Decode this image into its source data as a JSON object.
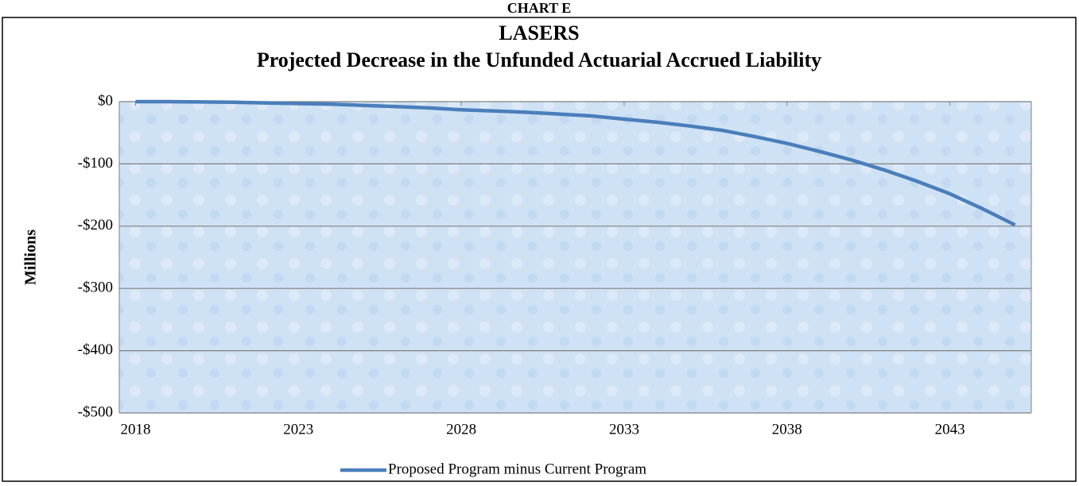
{
  "chart_data": {
    "type": "line",
    "header": "CHART E",
    "title": "LASERS",
    "subtitle": "Projected Decrease in the Unfunded Actuarial Accrued Liability",
    "y_label": "Millions",
    "x": [
      2018,
      2019,
      2020,
      2021,
      2022,
      2023,
      2024,
      2025,
      2026,
      2027,
      2028,
      2029,
      2030,
      2031,
      2032,
      2033,
      2034,
      2035,
      2036,
      2037,
      2038,
      2039,
      2040,
      2041,
      2042,
      2043,
      2044,
      2045
    ],
    "series": [
      {
        "name": "Proposed Program minus Current Program",
        "color": "#4a7ebb",
        "values": [
          0,
          0,
          -0.5,
          -1,
          -2,
          -3,
          -4,
          -6,
          -8,
          -10,
          -13,
          -15,
          -17,
          -20,
          -23,
          -28,
          -33,
          -39,
          -46,
          -56,
          -67,
          -80,
          -94,
          -110,
          -128,
          -148,
          -172,
          -198
        ]
      }
    ],
    "xlim": [
      2017.5,
      2045.5
    ],
    "xticks": [
      2018,
      2023,
      2028,
      2033,
      2038,
      2043
    ],
    "ylim": [
      -500,
      0
    ],
    "yticks": [
      {
        "value": -500,
        "label": "-$500"
      },
      {
        "value": -400,
        "label": "-$400"
      },
      {
        "value": -300,
        "label": "-$300"
      },
      {
        "value": -200,
        "label": "-$200"
      },
      {
        "value": -100,
        "label": "-$100"
      },
      {
        "value": 0,
        "label": "$0"
      }
    ],
    "grid": true
  }
}
